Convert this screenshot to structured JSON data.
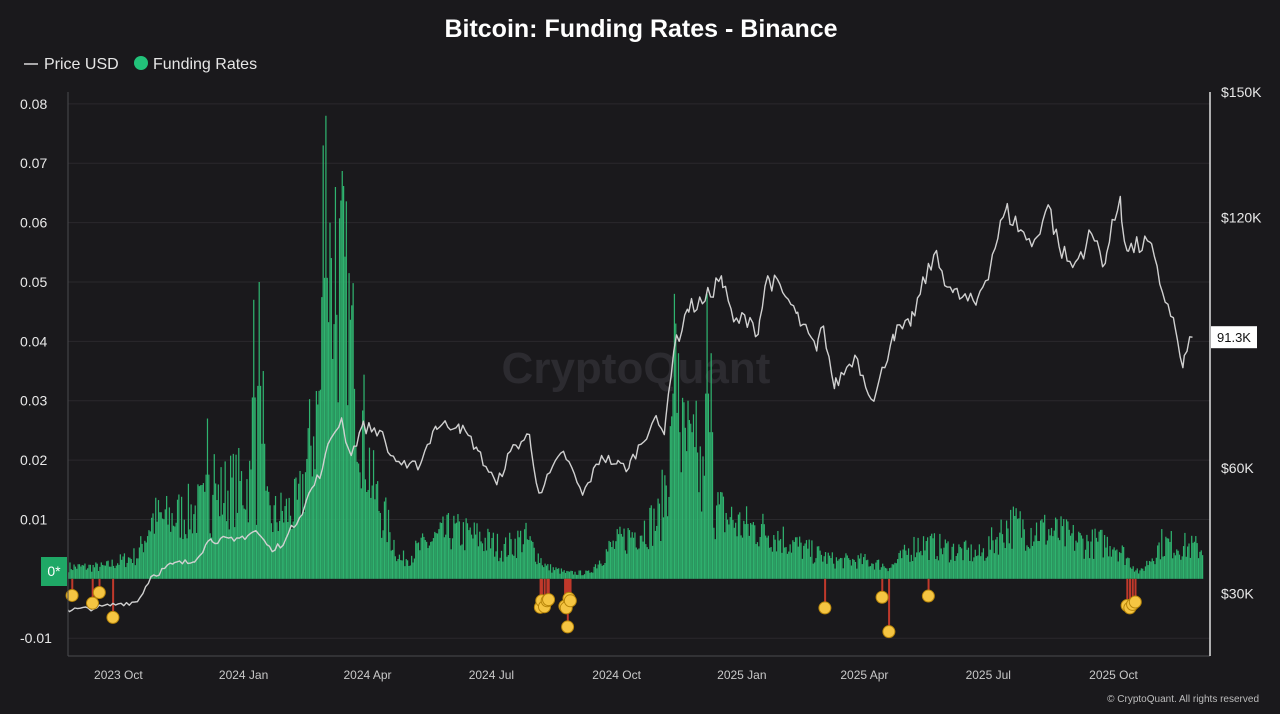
{
  "title": "Bitcoin: Funding Rates - Binance",
  "legend": [
    {
      "label": "Price USD",
      "type": "line",
      "color": "#d9d9d9"
    },
    {
      "label": "Funding Rates",
      "type": "dot",
      "color": "#22c27a"
    }
  ],
  "watermark": "CryptoQuant",
  "copyright": "© CryptoQuant. All rights reserved",
  "colors": {
    "positive": "#2fb36f",
    "negative": "#c0392b",
    "marker": "#f5c542",
    "zero_badge": "#1fa866",
    "price": "#d0d0d0"
  },
  "chart_data": {
    "type": "bar+line",
    "x_range": [
      "2023-08-25",
      "2025-12-05"
    ],
    "x_ticks": [
      {
        "label": "2023 Oct",
        "date": "2023-10-01"
      },
      {
        "label": "2024 Jan",
        "date": "2024-01-01"
      },
      {
        "label": "2024 Apr",
        "date": "2024-04-01"
      },
      {
        "label": "2024 Jul",
        "date": "2024-07-01"
      },
      {
        "label": "2024 Oct",
        "date": "2024-10-01"
      },
      {
        "label": "2025 Jan",
        "date": "2025-01-01"
      },
      {
        "label": "2025 Apr",
        "date": "2025-04-01"
      },
      {
        "label": "2025 Jul",
        "date": "2025-07-01"
      },
      {
        "label": "2025 Oct",
        "date": "2025-10-01"
      }
    ],
    "left_axis": {
      "label": "Funding Rates",
      "min": -0.013,
      "max": 0.082,
      "ticks": [
        -0.01,
        0.01,
        0.02,
        0.03,
        0.04,
        0.05,
        0.06,
        0.07,
        0.08
      ],
      "zero_label": "0*"
    },
    "right_axis": {
      "label": "Price USD",
      "min": 15000,
      "max": 150000,
      "ticks": [
        "$30K",
        "$60K",
        "$120K",
        "$150K"
      ],
      "tick_values": [
        30000,
        60000,
        120000,
        150000
      ]
    },
    "price_last_label": "91.3K",
    "price_last": 91300,
    "price_series": [
      [
        "2023-08-25",
        26000
      ],
      [
        "2023-09-15",
        26500
      ],
      [
        "2023-10-01",
        27500
      ],
      [
        "2023-10-15",
        28000
      ],
      [
        "2023-10-25",
        34000
      ],
      [
        "2023-11-10",
        37000
      ],
      [
        "2023-11-25",
        37500
      ],
      [
        "2023-12-08",
        43000
      ],
      [
        "2023-12-25",
        42500
      ],
      [
        "2024-01-10",
        45000
      ],
      [
        "2024-01-22",
        40000
      ],
      [
        "2024-02-01",
        43000
      ],
      [
        "2024-02-15",
        51000
      ],
      [
        "2024-02-28",
        60000
      ],
      [
        "2024-03-05",
        67000
      ],
      [
        "2024-03-13",
        72000
      ],
      [
        "2024-03-20",
        63000
      ],
      [
        "2024-03-28",
        70000
      ],
      [
        "2024-04-10",
        69000
      ],
      [
        "2024-04-18",
        63000
      ],
      [
        "2024-04-30",
        60000
      ],
      [
        "2024-05-10",
        61000
      ],
      [
        "2024-05-21",
        70000
      ],
      [
        "2024-06-07",
        70500
      ],
      [
        "2024-06-20",
        65000
      ],
      [
        "2024-07-05",
        56000
      ],
      [
        "2024-07-15",
        64000
      ],
      [
        "2024-07-29",
        68000
      ],
      [
        "2024-08-05",
        54000
      ],
      [
        "2024-08-23",
        64000
      ],
      [
        "2024-09-06",
        53500
      ],
      [
        "2024-09-20",
        63000
      ],
      [
        "2024-10-01",
        61000
      ],
      [
        "2024-10-10",
        60000
      ],
      [
        "2024-10-29",
        72000
      ],
      [
        "2024-11-05",
        68000
      ],
      [
        "2024-11-12",
        88000
      ],
      [
        "2024-11-22",
        98000
      ],
      [
        "2024-12-05",
        100000
      ],
      [
        "2024-12-17",
        106000
      ],
      [
        "2024-12-26",
        95000
      ],
      [
        "2025-01-07",
        96000
      ],
      [
        "2025-01-13",
        92000
      ],
      [
        "2025-01-20",
        106000
      ],
      [
        "2025-01-31",
        102000
      ],
      [
        "2025-02-10",
        97000
      ],
      [
        "2025-02-25",
        88000
      ],
      [
        "2025-03-02",
        94000
      ],
      [
        "2025-03-10",
        79000
      ],
      [
        "2025-03-25",
        87000
      ],
      [
        "2025-04-08",
        76000
      ],
      [
        "2025-04-22",
        92000
      ],
      [
        "2025-05-05",
        94000
      ],
      [
        "2025-05-22",
        111000
      ],
      [
        "2025-06-05",
        102000
      ],
      [
        "2025-06-22",
        99000
      ],
      [
        "2025-07-03",
        109000
      ],
      [
        "2025-07-14",
        122000
      ],
      [
        "2025-07-25",
        117000
      ],
      [
        "2025-08-02",
        113000
      ],
      [
        "2025-08-14",
        123000
      ],
      [
        "2025-08-22",
        113000
      ],
      [
        "2025-09-01",
        108000
      ],
      [
        "2025-09-15",
        116000
      ],
      [
        "2025-09-25",
        109000
      ],
      [
        "2025-10-06",
        125000
      ],
      [
        "2025-10-11",
        112000
      ],
      [
        "2025-10-28",
        114000
      ],
      [
        "2025-11-04",
        104000
      ],
      [
        "2025-11-14",
        96000
      ],
      [
        "2025-11-21",
        84000
      ],
      [
        "2025-11-28",
        91300
      ]
    ],
    "funding_series_keypoints": [
      [
        "2023-08-25",
        0.002
      ],
      [
        "2023-09-20",
        0.002
      ],
      [
        "2023-10-15",
        0.004
      ],
      [
        "2023-10-25",
        0.01
      ],
      [
        "2023-11-05",
        0.01
      ],
      [
        "2023-11-20",
        0.011
      ],
      [
        "2023-12-05",
        0.012
      ],
      [
        "2023-12-20",
        0.015
      ],
      [
        "2024-01-05",
        0.016
      ],
      [
        "2024-01-20",
        0.01
      ],
      [
        "2024-02-10",
        0.012
      ],
      [
        "2024-02-25",
        0.03
      ],
      [
        "2024-03-05",
        0.045
      ],
      [
        "2024-03-13",
        0.05
      ],
      [
        "2024-03-25",
        0.03
      ],
      [
        "2024-04-05",
        0.015
      ],
      [
        "2024-04-25",
        0.003
      ],
      [
        "2024-05-15",
        0.006
      ],
      [
        "2024-06-01",
        0.008
      ],
      [
        "2024-06-20",
        0.007
      ],
      [
        "2024-07-10",
        0.005
      ],
      [
        "2024-07-25",
        0.007
      ],
      [
        "2024-08-10",
        0.002
      ],
      [
        "2024-08-25",
        0.001
      ],
      [
        "2024-09-10",
        0.001
      ],
      [
        "2024-09-25",
        0.005
      ],
      [
        "2024-10-15",
        0.008
      ],
      [
        "2024-11-01",
        0.01
      ],
      [
        "2024-11-12",
        0.025
      ],
      [
        "2024-11-25",
        0.02
      ],
      [
        "2024-12-10",
        0.012
      ],
      [
        "2024-12-30",
        0.009
      ],
      [
        "2025-01-20",
        0.008
      ],
      [
        "2025-02-15",
        0.005
      ],
      [
        "2025-03-10",
        0.003
      ],
      [
        "2025-04-01",
        0.003
      ],
      [
        "2025-04-20",
        0.002
      ],
      [
        "2025-05-10",
        0.006
      ],
      [
        "2025-06-01",
        0.005
      ],
      [
        "2025-06-25",
        0.004
      ],
      [
        "2025-07-15",
        0.009
      ],
      [
        "2025-08-15",
        0.008
      ],
      [
        "2025-09-10",
        0.006
      ],
      [
        "2025-10-01",
        0.006
      ],
      [
        "2025-10-20",
        0.001
      ],
      [
        "2025-11-05",
        0.006
      ],
      [
        "2025-12-05",
        0.005
      ]
    ],
    "funding_spikes": [
      [
        "2023-12-05",
        0.027
      ],
      [
        "2023-12-10",
        0.021
      ],
      [
        "2024-01-08",
        0.047
      ],
      [
        "2024-01-12",
        0.05
      ],
      [
        "2024-01-15",
        0.035
      ],
      [
        "2024-02-28",
        0.073
      ],
      [
        "2024-03-01",
        0.078
      ],
      [
        "2024-03-04",
        0.06
      ],
      [
        "2024-03-08",
        0.066
      ],
      [
        "2024-03-12",
        0.05
      ],
      [
        "2024-03-18",
        0.045
      ],
      [
        "2024-03-22",
        0.032
      ],
      [
        "2024-11-12",
        0.048
      ],
      [
        "2024-11-13",
        0.043
      ],
      [
        "2024-11-15",
        0.038
      ],
      [
        "2024-11-22",
        0.03
      ],
      [
        "2024-11-28",
        0.03
      ],
      [
        "2024-12-06",
        0.048
      ],
      [
        "2024-12-09",
        0.038
      ]
    ],
    "negative_events": [
      [
        "2023-08-28",
        -0.0028
      ],
      [
        "2023-09-12",
        -0.0041
      ],
      [
        "2023-09-17",
        -0.0023
      ],
      [
        "2023-09-27",
        -0.0065
      ],
      [
        "2024-08-06",
        -0.0048
      ],
      [
        "2024-08-07",
        -0.0037
      ],
      [
        "2024-08-09",
        -0.0047
      ],
      [
        "2024-08-11",
        -0.0037
      ],
      [
        "2024-08-12",
        -0.0035
      ],
      [
        "2024-08-24",
        -0.0046
      ],
      [
        "2024-08-25",
        -0.0049
      ],
      [
        "2024-08-26",
        -0.0081
      ],
      [
        "2024-08-27",
        -0.0033
      ],
      [
        "2024-08-28",
        -0.0037
      ],
      [
        "2025-03-03",
        -0.0049
      ],
      [
        "2025-04-14",
        -0.0031
      ],
      [
        "2025-04-19",
        -0.0089
      ],
      [
        "2025-05-18",
        -0.0029
      ],
      [
        "2025-10-11",
        -0.0045
      ],
      [
        "2025-10-13",
        -0.0049
      ],
      [
        "2025-10-15",
        -0.0043
      ],
      [
        "2025-10-17",
        -0.0039
      ]
    ]
  }
}
